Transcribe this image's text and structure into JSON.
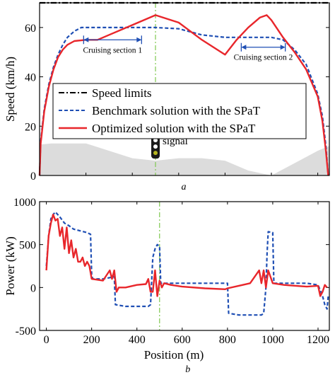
{
  "chart_data": [
    {
      "type": "line",
      "panel_label": "a",
      "xlim": [
        0,
        1250
      ],
      "ylim": [
        0,
        70
      ],
      "ylabel": "Speed (km/h)",
      "yticks": [
        0,
        20,
        40,
        60
      ],
      "xtick_labels_shown": false,
      "grid": false,
      "legend_placement": "center-left",
      "legend": [
        "Speed limits",
        "Benchmark solution with the SPaT",
        "Optimized solution with the SPaT"
      ],
      "series": [
        {
          "name": "Speed limits",
          "color": "#000000",
          "style": "dash-dot",
          "x": [
            0,
            1250
          ],
          "y": [
            70,
            70
          ]
        },
        {
          "name": "Benchmark solution with the SPaT",
          "color": "#1f4fb4",
          "style": "dashed",
          "x": [
            0,
            5,
            20,
            40,
            60,
            80,
            100,
            120,
            150,
            180,
            200,
            300,
            400,
            500,
            600,
            700,
            800,
            900,
            950,
            1000,
            1050,
            1100,
            1150,
            1200,
            1220,
            1235,
            1245
          ],
          "y": [
            0,
            14,
            27,
            37,
            44,
            49,
            53,
            56,
            58.5,
            60,
            60,
            60,
            60,
            60,
            59.5,
            57,
            56,
            56,
            56,
            56,
            55,
            51,
            45,
            33,
            24,
            12,
            0
          ]
        },
        {
          "name": "Optimized solution with the SPaT",
          "color": "#e8262b",
          "style": "solid",
          "x": [
            0,
            5,
            20,
            40,
            60,
            80,
            100,
            120,
            150,
            200,
            250,
            300,
            400,
            500,
            600,
            700,
            800,
            850,
            900,
            950,
            980,
            1000,
            1050,
            1100,
            1150,
            1200,
            1220,
            1235,
            1245
          ],
          "y": [
            0,
            13,
            26,
            36,
            43,
            48,
            51,
            53,
            54.5,
            55,
            55,
            57,
            61,
            65,
            62,
            55,
            49,
            55,
            60,
            64,
            65,
            63,
            56,
            50,
            43,
            32,
            22,
            10,
            0
          ]
        }
      ],
      "terrain": {
        "color": "#dcdcdc",
        "x": [
          0,
          50,
          100,
          150,
          200,
          400,
          500,
          600,
          700,
          800,
          900,
          1000,
          1100,
          1200,
          1250
        ],
        "y": [
          12.5,
          13,
          13,
          13,
          13,
          7,
          6,
          7,
          7,
          6,
          2,
          0,
          5,
          10,
          12
        ]
      },
      "annotations": [
        {
          "text": "Cruising section 1",
          "x_from": 190,
          "x_to": 440,
          "y": 55
        },
        {
          "text": "Cruising section 2",
          "x_from": 870,
          "x_to": 1060,
          "y": 52
        },
        {
          "text": "signal",
          "x": 500,
          "y": 12,
          "kind": "traffic-light"
        }
      ],
      "reference_line": {
        "x": 500,
        "color": "#7ec850",
        "style": "dash-dot"
      }
    },
    {
      "type": "line",
      "panel_label": "b",
      "xlim": [
        -30,
        1250
      ],
      "ylim": [
        -500,
        1000
      ],
      "xlabel": "Position (m)",
      "ylabel": "Power (kW)",
      "xticks": [
        0,
        200,
        400,
        600,
        800,
        1000,
        1200
      ],
      "yticks": [
        -500,
        0,
        500,
        1000
      ],
      "grid": false,
      "series": [
        {
          "name": "Benchmark solution with the SPaT",
          "color": "#1f4fb4",
          "style": "dashed",
          "x": [
            0,
            10,
            20,
            30,
            40,
            60,
            80,
            100,
            120,
            150,
            180,
            195,
            200,
            205,
            250,
            290,
            300,
            305,
            350,
            400,
            450,
            460,
            470,
            480,
            490,
            500,
            505,
            550,
            600,
            700,
            790,
            800,
            805,
            850,
            900,
            950,
            960,
            970,
            975,
            980,
            1000,
            1005,
            1050,
            1100,
            1150,
            1200,
            1220,
            1230,
            1240,
            1245
          ],
          "y": [
            250,
            600,
            800,
            850,
            880,
            820,
            750,
            720,
            680,
            660,
            640,
            620,
            150,
            100,
            100,
            120,
            130,
            -200,
            -220,
            -220,
            -220,
            -200,
            350,
            450,
            500,
            480,
            50,
            50,
            50,
            50,
            50,
            50,
            -300,
            -320,
            -320,
            -320,
            -300,
            0,
            400,
            650,
            640,
            50,
            50,
            50,
            50,
            30,
            -100,
            -200,
            -250,
            -100
          ]
        },
        {
          "name": "Optimized solution with the SPaT",
          "color": "#e8262b",
          "style": "solid",
          "x": [
            0,
            10,
            20,
            30,
            40,
            50,
            60,
            70,
            80,
            90,
            100,
            110,
            120,
            130,
            140,
            150,
            160,
            170,
            180,
            190,
            200,
            250,
            280,
            290,
            300,
            310,
            320,
            350,
            400,
            440,
            450,
            460,
            470,
            480,
            490,
            500,
            510,
            520,
            550,
            600,
            700,
            790,
            800,
            850,
            900,
            940,
            950,
            960,
            970,
            980,
            1000,
            1050,
            1100,
            1150,
            1200,
            1210,
            1220,
            1230,
            1240
          ],
          "y": [
            200,
            600,
            750,
            850,
            780,
            800,
            600,
            700,
            450,
            700,
            400,
            550,
            350,
            450,
            300,
            300,
            350,
            250,
            300,
            250,
            100,
            80,
            200,
            100,
            200,
            -50,
            0,
            0,
            30,
            40,
            100,
            -50,
            -50,
            200,
            -100,
            80,
            0,
            50,
            30,
            10,
            -10,
            -20,
            -10,
            20,
            50,
            200,
            50,
            200,
            0,
            200,
            50,
            30,
            20,
            10,
            20,
            -100,
            -50,
            30,
            0
          ]
        }
      ],
      "reference_line": {
        "x": 500,
        "color": "#7ec850",
        "style": "dash-dot"
      }
    }
  ]
}
